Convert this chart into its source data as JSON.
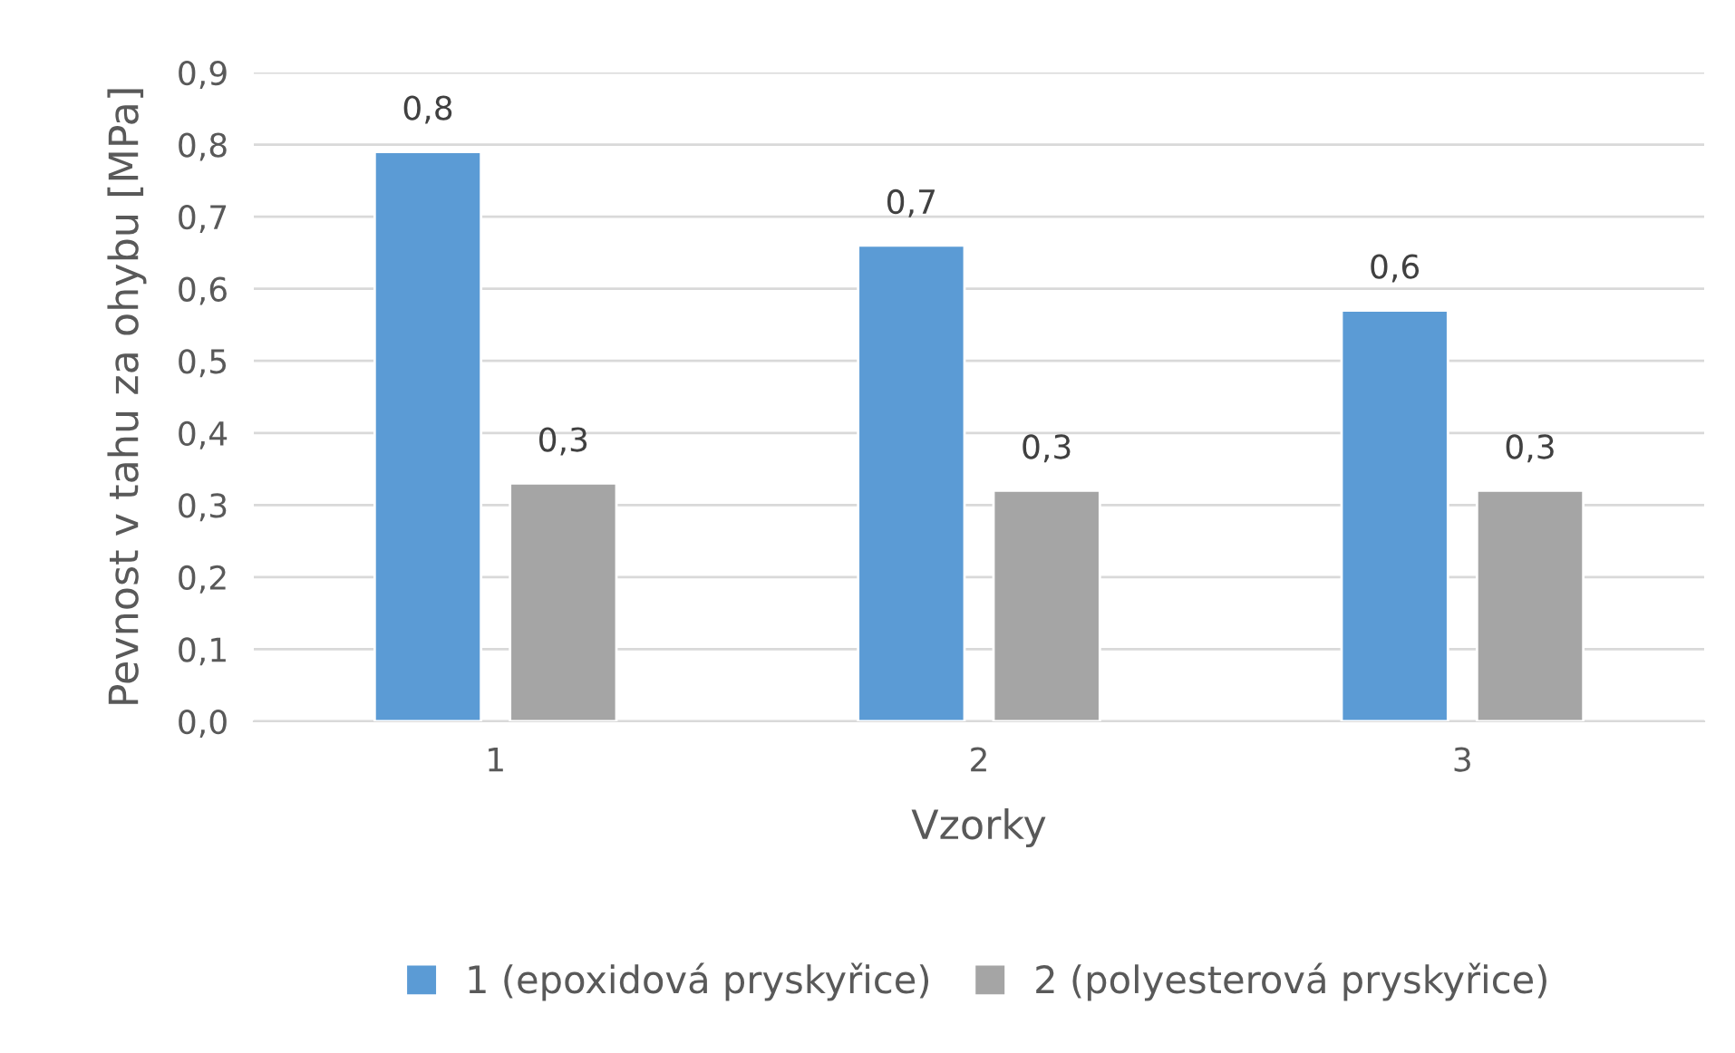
{
  "chart_data": {
    "type": "bar",
    "xlabel": "Vzorky",
    "ylabel": "Pevnost v tahu za ohybu [MPa]",
    "categories": [
      "1",
      "2",
      "3"
    ],
    "series": [
      {
        "name": "1 (epoxidová pryskyřice)",
        "color": "#5b9bd5",
        "values": [
          0.79,
          0.66,
          0.57
        ],
        "value_labels": [
          "0,8",
          "0,7",
          "0,6"
        ]
      },
      {
        "name": "2 (polyesterová pryskyřice)",
        "color": "#a5a5a5",
        "values": [
          0.33,
          0.32,
          0.32
        ],
        "value_labels": [
          "0,3",
          "0,3",
          "0,3"
        ]
      }
    ],
    "ylim": [
      0,
      0.9
    ],
    "yticks": [
      {
        "value": 0,
        "label": "0,0"
      },
      {
        "value": 0.1,
        "label": "0,1"
      },
      {
        "value": 0.2,
        "label": "0,2"
      },
      {
        "value": 0.3,
        "label": "0,3"
      },
      {
        "value": 0.4,
        "label": "0,4"
      },
      {
        "value": 0.5,
        "label": "0,5"
      },
      {
        "value": 0.6,
        "label": "0,6"
      },
      {
        "value": 0.7,
        "label": "0,7"
      },
      {
        "value": 0.8,
        "label": "0,8"
      },
      {
        "value": 0.9,
        "label": "0,9"
      }
    ],
    "grid": "y",
    "legend": "bottom"
  }
}
